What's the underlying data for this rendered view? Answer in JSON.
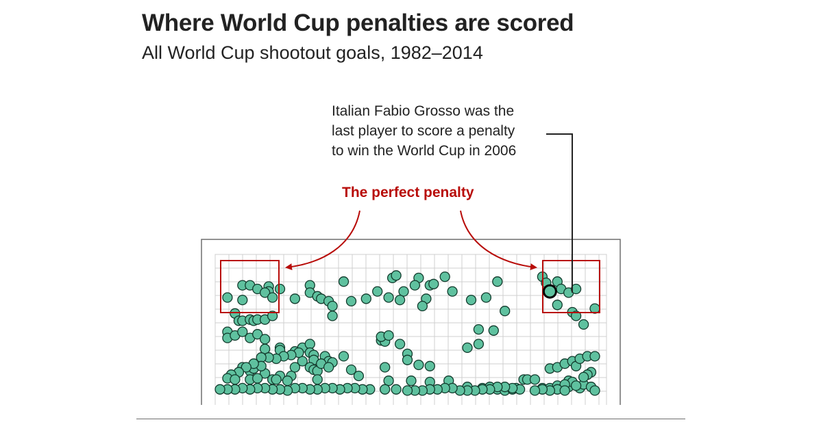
{
  "title": "Where World Cup penalties are scored",
  "subtitle": "All World Cup shootout goals, 1982–2014",
  "annotation": {
    "lines": [
      "Italian Fabio Grosso was the",
      "last player to score a penalty",
      "to win the World Cup in 2006"
    ]
  },
  "perfect_penalty_label": "The perfect penalty",
  "colors": {
    "dot_fill": "#5fc19f",
    "dot_stroke": "#123a2c",
    "highlight_stroke": "#000000",
    "accent_red": "#b80c09",
    "grid": "#cfcfcf",
    "frame": "#6e6e6e",
    "text": "#222222"
  },
  "chart_data": {
    "type": "scatter",
    "x_range": [
      0,
      100
    ],
    "y_range": [
      0,
      100
    ],
    "grid": true,
    "points": [
      [
        2,
        81
      ],
      [
        6,
        91
      ],
      [
        8,
        91
      ],
      [
        6,
        79
      ],
      [
        10,
        88
      ],
      [
        13,
        90
      ],
      [
        13,
        86
      ],
      [
        12,
        85
      ],
      [
        16,
        88
      ],
      [
        14,
        81
      ],
      [
        4,
        68
      ],
      [
        5,
        62
      ],
      [
        6,
        62
      ],
      [
        8,
        63
      ],
      [
        9,
        62
      ],
      [
        10,
        63
      ],
      [
        12,
        63
      ],
      [
        14,
        66
      ],
      [
        20,
        80
      ],
      [
        24,
        91
      ],
      [
        24,
        85
      ],
      [
        26,
        82
      ],
      [
        27,
        80
      ],
      [
        29,
        78
      ],
      [
        30,
        74
      ],
      [
        30,
        66
      ],
      [
        33,
        94
      ],
      [
        35,
        78
      ],
      [
        39,
        80
      ],
      [
        42,
        86
      ],
      [
        46,
        97
      ],
      [
        47,
        99
      ],
      [
        49,
        86
      ],
      [
        48,
        79
      ],
      [
        45,
        81
      ],
      [
        53,
        97
      ],
      [
        52,
        91
      ],
      [
        55,
        80
      ],
      [
        54,
        74
      ],
      [
        56,
        91
      ],
      [
        57,
        92
      ],
      [
        60,
        98
      ],
      [
        62,
        86
      ],
      [
        67,
        79
      ],
      [
        71,
        81
      ],
      [
        74,
        94
      ],
      [
        76,
        70
      ],
      [
        86,
        98
      ],
      [
        87,
        93
      ],
      [
        90,
        94
      ],
      [
        91,
        88
      ],
      [
        93,
        85
      ],
      [
        95,
        88
      ],
      [
        90,
        75
      ],
      [
        94,
        69
      ],
      [
        95,
        66
      ],
      [
        97,
        59
      ],
      [
        100,
        72
      ],
      [
        2,
        53
      ],
      [
        2,
        48
      ],
      [
        4,
        50
      ],
      [
        6,
        53
      ],
      [
        8,
        48
      ],
      [
        10,
        51
      ],
      [
        12,
        47
      ],
      [
        12,
        39
      ],
      [
        16,
        40
      ],
      [
        16,
        38
      ],
      [
        20,
        37
      ],
      [
        22,
        40
      ],
      [
        24,
        43
      ],
      [
        24,
        36
      ],
      [
        25,
        34
      ],
      [
        25,
        30
      ],
      [
        28,
        33
      ],
      [
        29,
        29
      ],
      [
        30,
        28
      ],
      [
        33,
        33
      ],
      [
        43,
        46
      ],
      [
        44,
        45
      ],
      [
        43,
        49
      ],
      [
        45,
        50
      ],
      [
        48,
        43
      ],
      [
        50,
        35
      ],
      [
        50,
        30
      ],
      [
        53,
        26
      ],
      [
        56,
        25
      ],
      [
        66,
        40
      ],
      [
        69,
        43
      ],
      [
        69,
        55
      ],
      [
        73,
        54
      ],
      [
        6,
        24
      ],
      [
        8,
        21
      ],
      [
        10,
        26
      ],
      [
        9,
        23
      ],
      [
        12,
        19
      ],
      [
        14,
        14
      ],
      [
        16,
        17
      ],
      [
        19,
        17
      ],
      [
        20,
        24
      ],
      [
        22,
        29
      ],
      [
        24,
        24
      ],
      [
        25,
        22
      ],
      [
        26,
        21
      ],
      [
        27,
        27
      ],
      [
        29,
        24
      ],
      [
        35,
        22
      ],
      [
        26,
        14
      ],
      [
        37,
        17
      ],
      [
        44,
        24
      ],
      [
        45,
        13
      ],
      [
        51,
        13
      ],
      [
        56,
        12
      ],
      [
        61,
        13
      ],
      [
        66,
        8
      ],
      [
        70,
        7
      ],
      [
        72,
        8
      ],
      [
        74,
        6
      ],
      [
        76,
        5
      ],
      [
        78,
        6
      ],
      [
        79,
        7
      ],
      [
        81,
        14
      ],
      [
        82,
        14
      ],
      [
        84,
        14
      ],
      [
        86,
        7
      ],
      [
        88,
        7
      ],
      [
        90,
        9
      ],
      [
        93,
        13
      ],
      [
        93,
        8
      ],
      [
        96,
        7
      ],
      [
        97,
        10
      ],
      [
        88,
        23
      ],
      [
        90,
        24
      ],
      [
        92,
        27
      ],
      [
        94,
        29
      ],
      [
        95,
        25
      ],
      [
        96,
        31
      ],
      [
        98,
        33
      ],
      [
        100,
        33
      ],
      [
        99,
        20
      ],
      [
        98,
        18
      ],
      [
        97,
        16
      ],
      [
        94,
        12
      ],
      [
        92,
        10
      ],
      [
        90,
        6
      ],
      [
        99,
        8
      ],
      [
        100,
        5
      ],
      [
        95,
        9
      ],
      [
        92,
        5
      ],
      [
        88,
        5
      ],
      [
        86,
        6
      ],
      [
        84,
        5
      ],
      [
        80,
        6
      ],
      [
        78,
        7
      ],
      [
        76,
        8
      ],
      [
        74,
        8
      ],
      [
        72,
        6
      ],
      [
        70,
        6
      ],
      [
        68,
        5
      ],
      [
        66,
        5
      ],
      [
        64,
        5
      ],
      [
        62,
        7
      ],
      [
        60,
        7
      ],
      [
        58,
        6
      ],
      [
        56,
        6
      ],
      [
        54,
        5
      ],
      [
        52,
        5
      ],
      [
        50,
        5
      ],
      [
        47,
        6
      ],
      [
        44,
        6
      ],
      [
        40,
        6
      ],
      [
        38,
        6
      ],
      [
        36,
        7
      ],
      [
        34,
        7
      ],
      [
        32,
        6
      ],
      [
        30,
        7
      ],
      [
        28,
        7
      ],
      [
        26,
        6
      ],
      [
        24,
        6
      ],
      [
        22,
        7
      ],
      [
        20,
        7
      ],
      [
        18,
        5
      ],
      [
        16,
        6
      ],
      [
        14,
        6
      ],
      [
        12,
        7
      ],
      [
        10,
        7
      ],
      [
        8,
        6
      ],
      [
        6,
        7
      ],
      [
        4,
        6
      ],
      [
        2,
        6
      ],
      [
        0,
        6
      ],
      [
        21,
        36
      ],
      [
        19,
        34
      ],
      [
        17,
        33
      ],
      [
        15,
        31
      ],
      [
        13,
        32
      ],
      [
        11,
        32
      ],
      [
        11,
        25
      ],
      [
        9,
        27
      ],
      [
        7,
        24
      ],
      [
        5,
        20
      ],
      [
        3,
        18
      ],
      [
        2,
        15
      ],
      [
        4,
        14
      ],
      [
        8,
        14
      ],
      [
        10,
        15
      ],
      [
        15,
        14
      ],
      [
        18,
        13
      ]
    ],
    "highlight": [
      88,
      86
    ]
  }
}
